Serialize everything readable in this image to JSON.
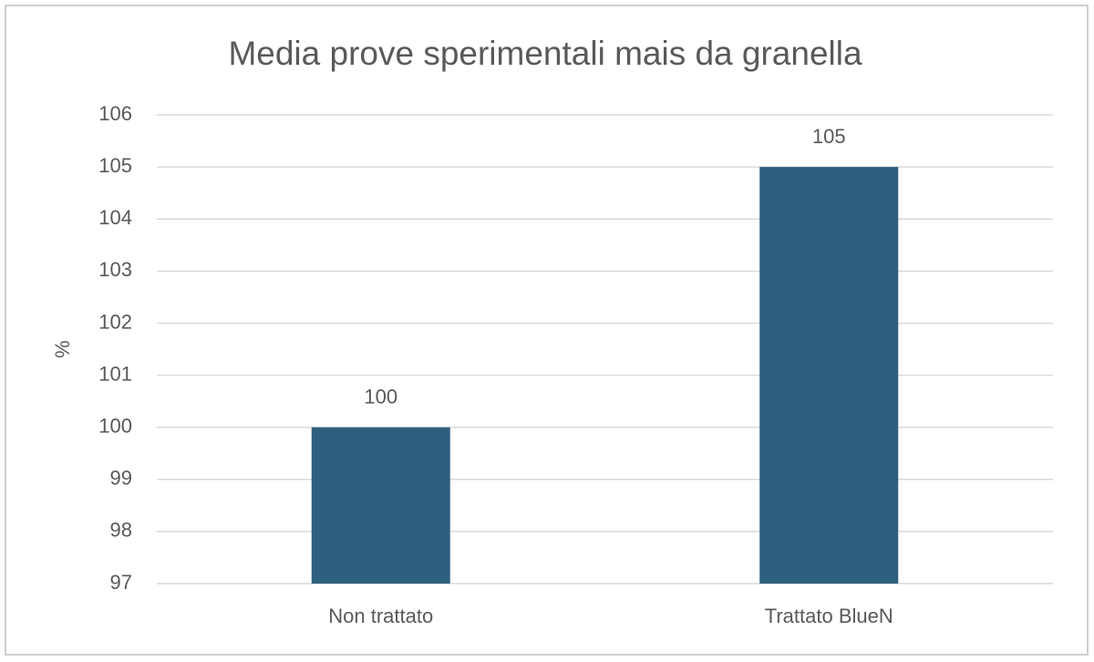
{
  "chart_data": {
    "type": "bar",
    "title": "Media prove sperimentali mais da granella",
    "y_label": "%",
    "categories": [
      "Non trattato",
      "Trattato BlueN"
    ],
    "values": [
      100,
      105
    ],
    "color": "#2e5f7f",
    "ylim": [
      97,
      106
    ],
    "yticks": [
      97,
      98,
      99,
      100,
      101,
      102,
      103,
      104,
      105,
      106
    ],
    "grid": true
  }
}
